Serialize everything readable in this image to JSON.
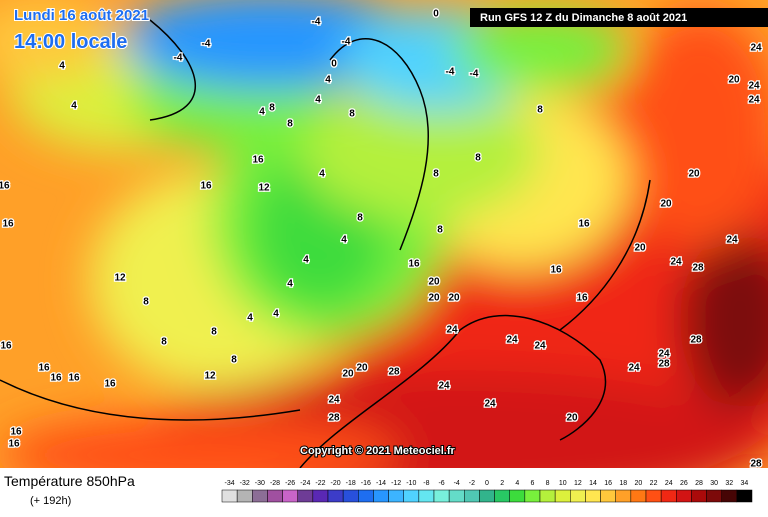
{
  "header": {
    "date": "Lundi 16 août 2021",
    "time": "14:00 locale",
    "run": "Run GFS 12 Z du Dimanche 8 août 2021"
  },
  "copyright": "Copyright © 2021 Meteociel.fr",
  "footer": {
    "title": "Température 850hPa",
    "lead": "(+ 192h)"
  },
  "legend": {
    "labels": [
      -34,
      -32,
      -30,
      -28,
      -26,
      -24,
      -22,
      -20,
      -18,
      -16,
      -14,
      -12,
      -10,
      -8,
      -6,
      -4,
      -2,
      0,
      2,
      4,
      6,
      8,
      10,
      12,
      14,
      16,
      18,
      20,
      22,
      24,
      26,
      28,
      30,
      32,
      34
    ],
    "colors": [
      "#e0e0e0",
      "#b4b4b4",
      "#8c6e96",
      "#a050a0",
      "#c864c8",
      "#6e3c96",
      "#5a28b4",
      "#3c3cc8",
      "#2850dc",
      "#1e6ef0",
      "#2896ff",
      "#3cb4ff",
      "#50d2ff",
      "#64e6f0",
      "#78f0dc",
      "#64dcc8",
      "#50c8b4",
      "#32b48c",
      "#28c864",
      "#3cdc3c",
      "#78f03c",
      "#b4f03c",
      "#dcf03c",
      "#f0f050",
      "#ffe650",
      "#ffc83c",
      "#ffa028",
      "#ff7814",
      "#ff5014",
      "#f02814",
      "#d21414",
      "#aa0a0a",
      "#7d0a0a",
      "#460505",
      "#000000"
    ]
  },
  "map_labels": [
    "-4",
    "-4",
    "-4",
    "-4",
    "0",
    "0",
    "4",
    "-4",
    "-4",
    "4",
    "4",
    "4",
    "8",
    "8",
    "4",
    "8",
    "8",
    "16",
    "12",
    "16",
    "16",
    "16",
    "4",
    "8",
    "8",
    "8",
    "4",
    "8",
    "4",
    "4",
    "12",
    "8",
    "8",
    "8",
    "8",
    "12",
    "4",
    "4",
    "16",
    "16",
    "20",
    "20",
    "20",
    "16",
    "16",
    "20",
    "24",
    "28",
    "24",
    "20",
    "20",
    "20",
    "24",
    "24",
    "24",
    "24",
    "24",
    "24",
    "24",
    "28",
    "24",
    "28",
    "28",
    "20",
    "20",
    "24",
    "24",
    "24",
    "28",
    "20",
    "16",
    "16",
    "16",
    "16",
    "16",
    "16",
    "16",
    "28"
  ]
}
